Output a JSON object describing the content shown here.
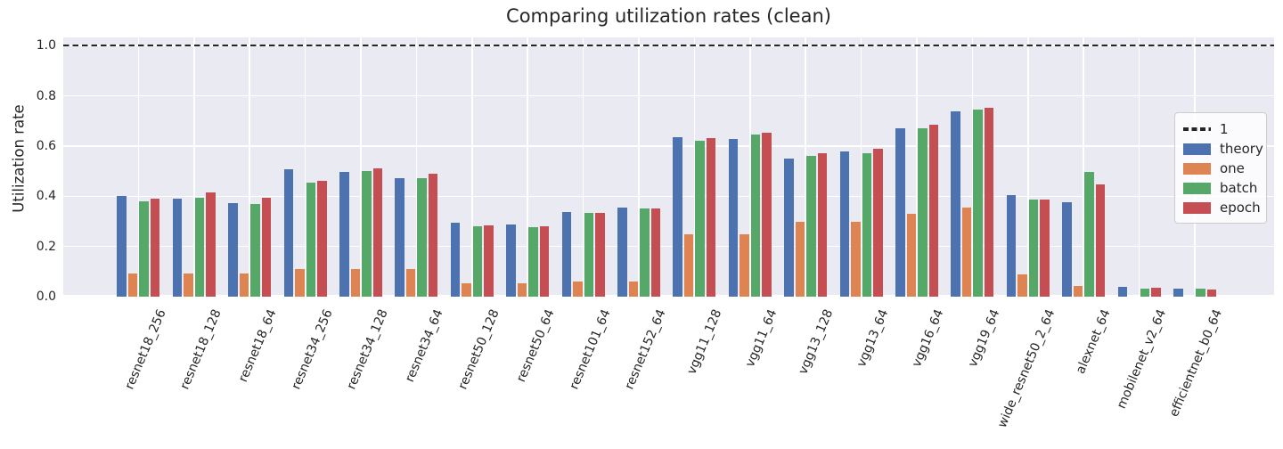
{
  "title": "Comparing utilization rates (clean)",
  "palette": {
    "figure_background": "#ffffff",
    "axes_background": "#eaeaf2",
    "grid": "#ffffff",
    "text": "#262626",
    "reference_line": "#262626"
  },
  "legend": {
    "position": "right",
    "reference_entry": "1",
    "entries": [
      "1",
      "theory",
      "one",
      "batch",
      "epoch"
    ]
  },
  "chart_data": {
    "type": "bar",
    "title": "Comparing utilization rates (clean)",
    "xlabel": "",
    "ylabel": "Utilization rate",
    "ylim": [
      0,
      1.033
    ],
    "yticks": [
      0.0,
      0.2,
      0.4,
      0.6,
      0.8,
      1.0
    ],
    "grid": true,
    "legend_position": "right",
    "reference_line": {
      "value": 1.0,
      "label": "1",
      "style": "dashed",
      "color": "#262626"
    },
    "categories": [
      "resnet18_256",
      "resnet18_128",
      "resnet18_64",
      "resnet34_256",
      "resnet34_128",
      "resnet34_64",
      "resnet50_128",
      "resnet50_64",
      "resnet101_64",
      "resnet152_64",
      "vgg11_128",
      "vgg11_64",
      "vgg13_128",
      "vgg13_64",
      "vgg16_64",
      "vgg19_64",
      "wide_resnet50_2_64",
      "alexnet_64",
      "mobilenet_v2_64",
      "efficientnet_b0_64"
    ],
    "series": [
      {
        "name": "theory",
        "color": "#4c72b0",
        "values": [
          0.4,
          0.39,
          0.372,
          0.507,
          0.498,
          0.471,
          0.293,
          0.288,
          0.336,
          0.354,
          0.637,
          0.628,
          0.549,
          0.579,
          0.672,
          0.738,
          0.406,
          0.376,
          0.038,
          0.032
        ]
      },
      {
        "name": "one",
        "color": "#dd8452",
        "values": [
          0.092,
          0.092,
          0.092,
          0.111,
          0.111,
          0.111,
          0.053,
          0.053,
          0.059,
          0.062,
          0.248,
          0.248,
          0.297,
          0.297,
          0.329,
          0.355,
          0.09,
          0.042,
          0.0,
          0.0
        ]
      },
      {
        "name": "batch",
        "color": "#55a868",
        "values": [
          0.38,
          0.393,
          0.368,
          0.454,
          0.499,
          0.472,
          0.282,
          0.277,
          0.333,
          0.35,
          0.621,
          0.646,
          0.56,
          0.571,
          0.672,
          0.745,
          0.387,
          0.496,
          0.032,
          0.032
        ]
      },
      {
        "name": "epoch",
        "color": "#c44e52",
        "values": [
          0.39,
          0.415,
          0.393,
          0.463,
          0.511,
          0.491,
          0.284,
          0.282,
          0.333,
          0.351,
          0.632,
          0.653,
          0.573,
          0.588,
          0.684,
          0.753,
          0.387,
          0.447,
          0.035,
          0.027
        ]
      }
    ]
  }
}
